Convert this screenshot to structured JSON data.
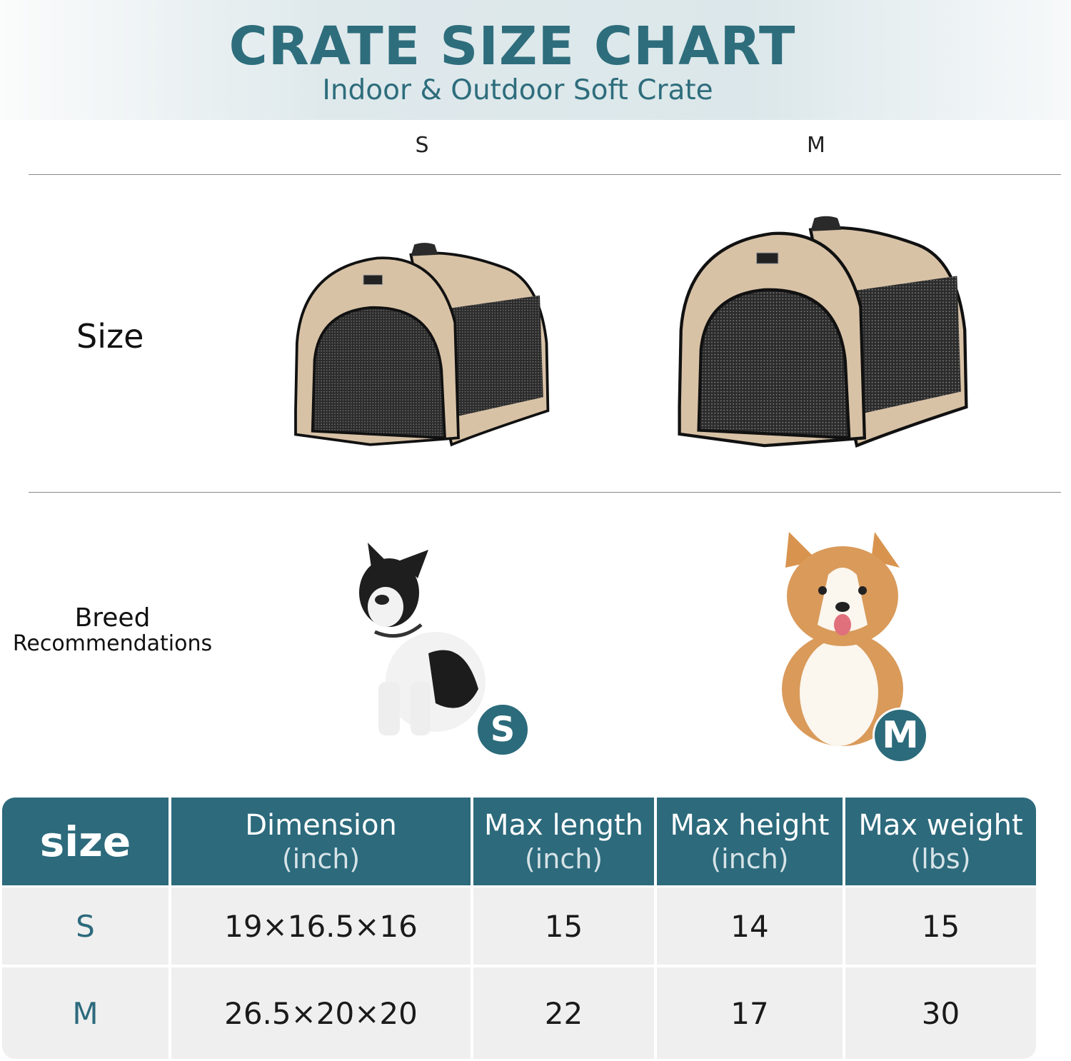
{
  "header": {
    "title": "CRATE SIZE CHART",
    "subtitle": "Indoor & Outdoor Soft Crate"
  },
  "columns": [
    "S",
    "M"
  ],
  "rows": {
    "size_label": "Size",
    "breed_label_line1": "Breed",
    "breed_label_line2": "Recommendations"
  },
  "badges": [
    "S",
    "M"
  ],
  "colors": {
    "accent": "#2c6a7c",
    "crate_fabric": "#d9c3a8",
    "mesh": "#2a2a2a",
    "row_bg": "#efefef"
  },
  "table": {
    "headers": [
      {
        "main": "size",
        "unit": ""
      },
      {
        "main": "Dimension",
        "unit": "(inch)"
      },
      {
        "main": "Max length",
        "unit": "(inch)"
      },
      {
        "main": "Max height",
        "unit": "(inch)"
      },
      {
        "main": "Max weight",
        "unit": "(lbs)"
      }
    ],
    "rows": [
      [
        "S",
        "19×16.5×16",
        "15",
        "14",
        "15"
      ],
      [
        "M",
        "26.5×20×20",
        "22",
        "17",
        "30"
      ]
    ]
  }
}
